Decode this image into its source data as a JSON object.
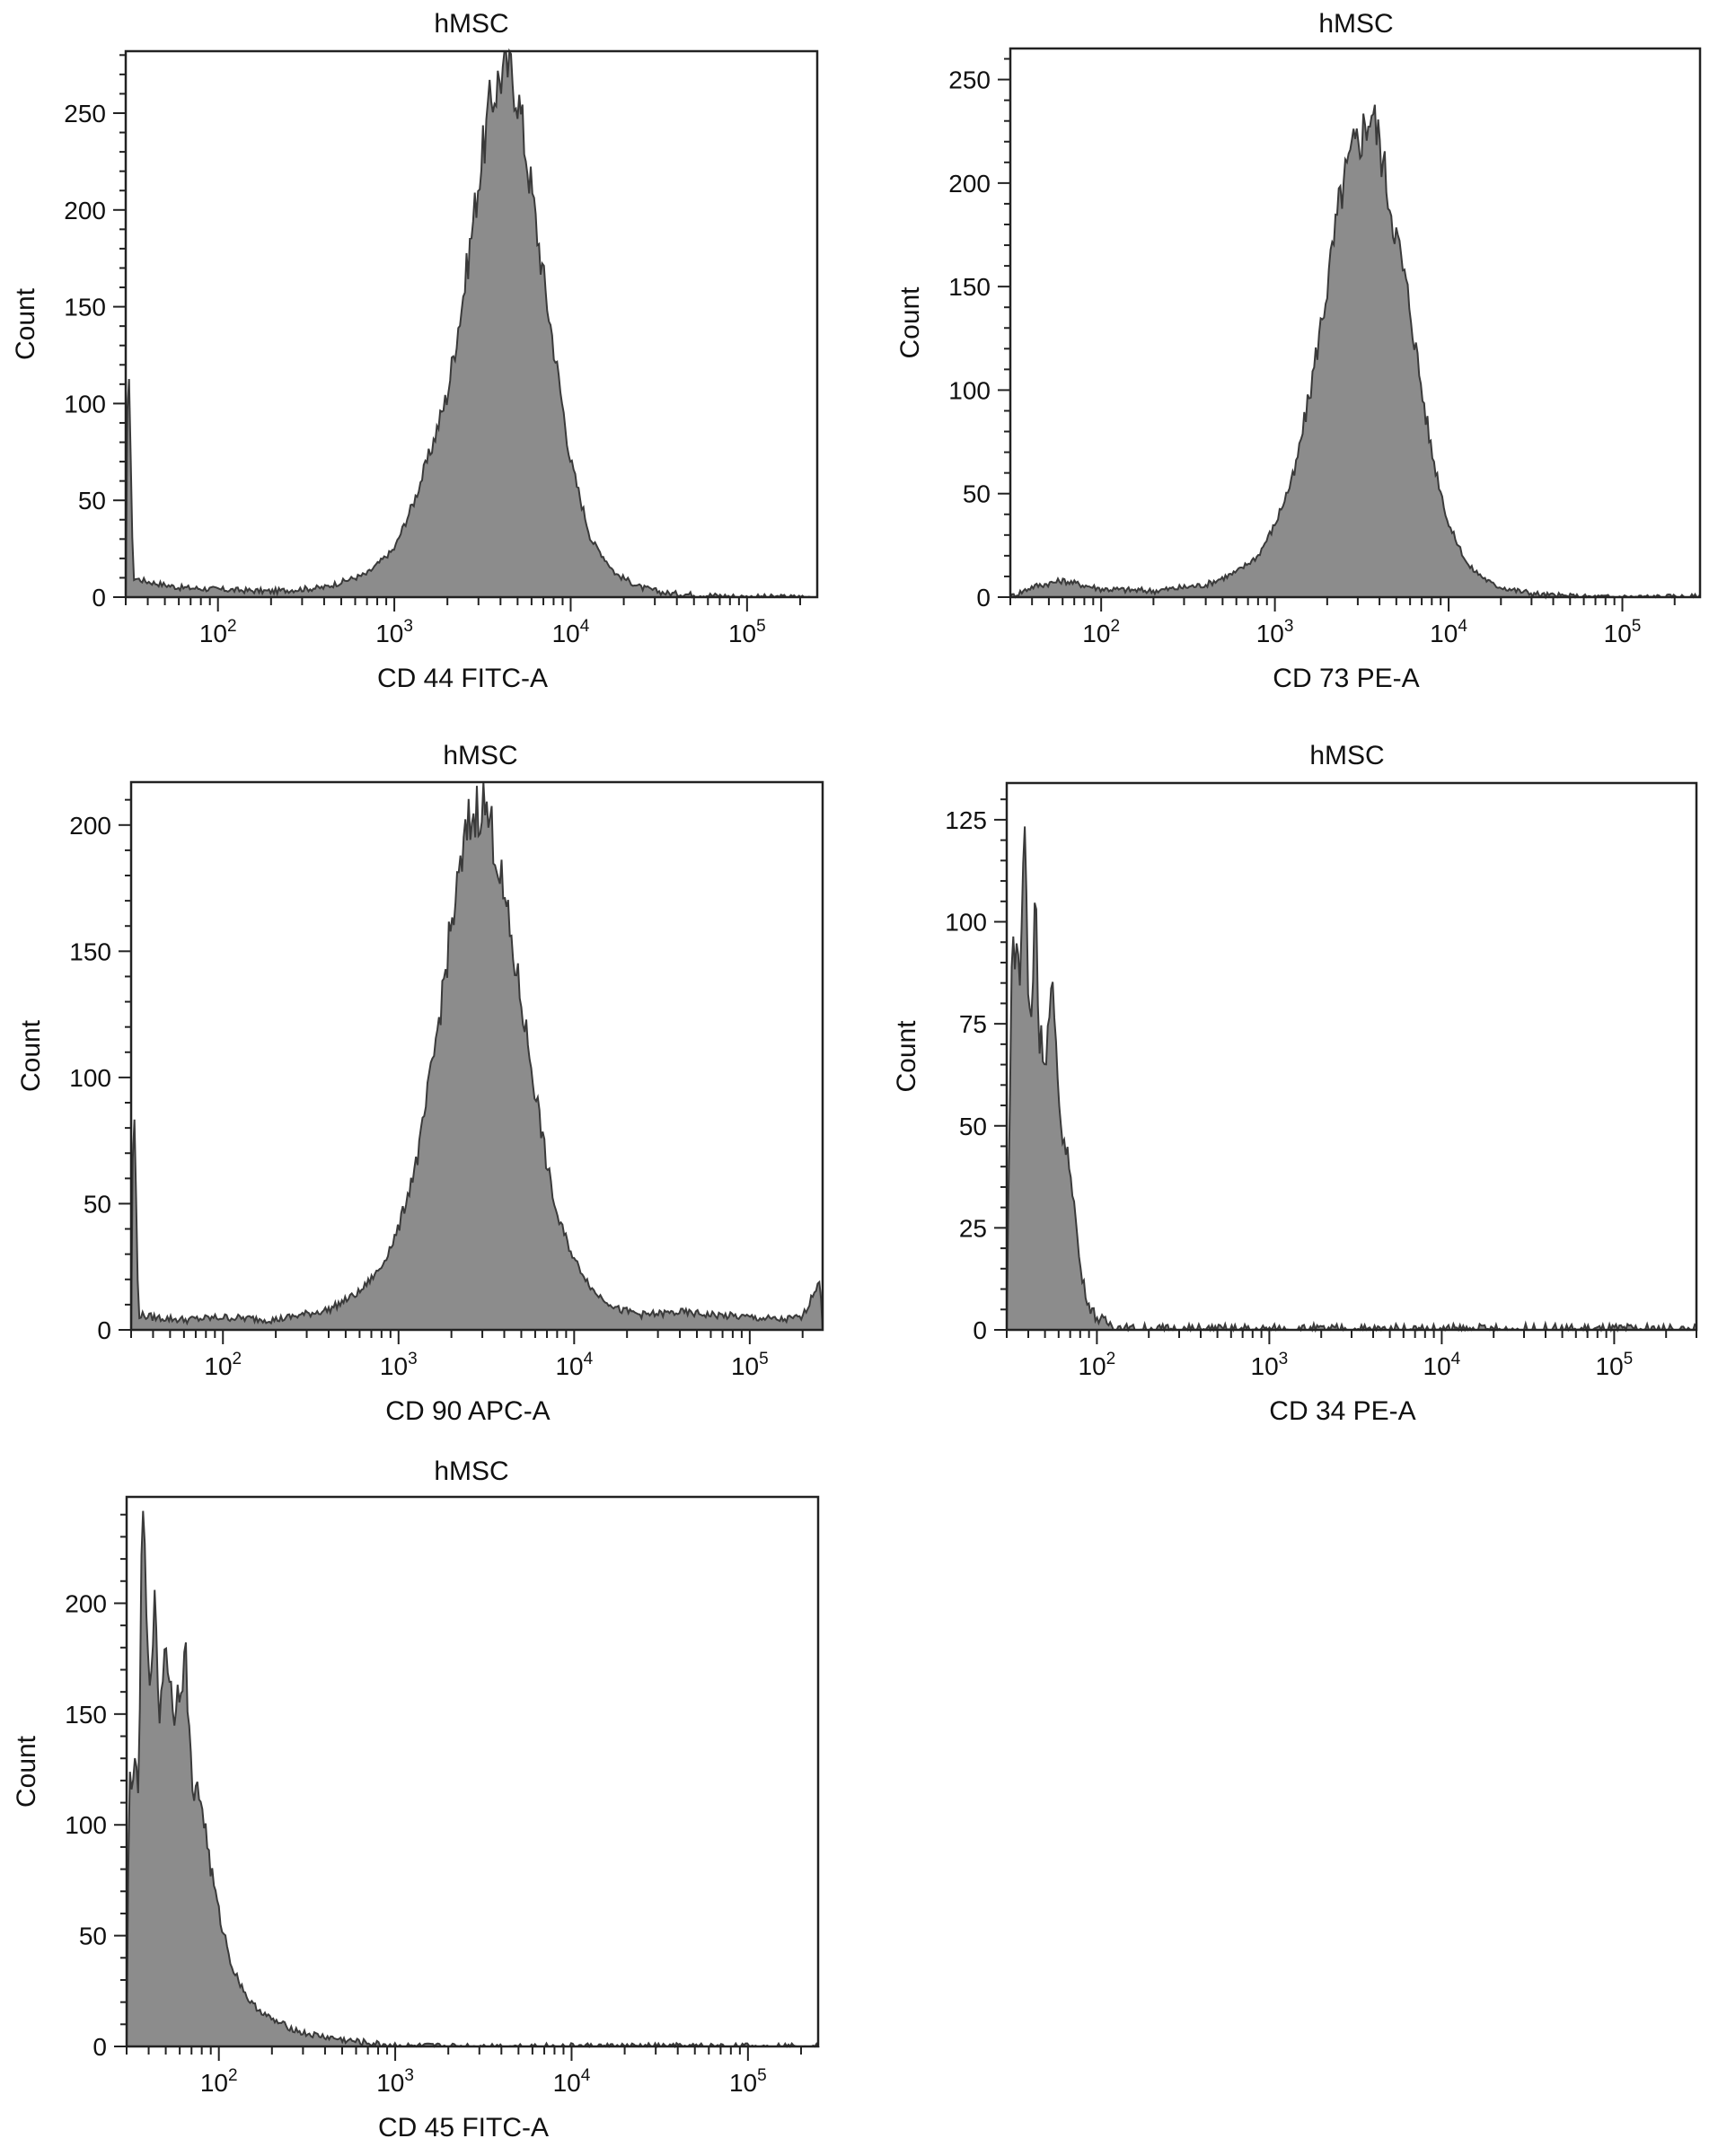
{
  "colors": {
    "fill": "#8c8c8c",
    "outline": "#3a3a3a",
    "frame": "#222222"
  },
  "chart_data": [
    {
      "type": "area",
      "title": "hMSC",
      "xlabel": "CD 44 FITC-A",
      "ylabel": "Count",
      "xscale": "log",
      "xlim": [
        30,
        250000
      ],
      "ylim": [
        0,
        282
      ],
      "yticks": [
        0,
        50,
        100,
        150,
        200,
        250
      ],
      "xticks": [
        100,
        1000,
        10000,
        100000
      ],
      "xtick_labels": [
        {
          "base": "10",
          "exp": "2"
        },
        {
          "base": "10",
          "exp": "3"
        },
        {
          "base": "10",
          "exp": "4"
        },
        {
          "base": "10",
          "exp": "5"
        }
      ],
      "series": [
        {
          "x": [
            30,
            31,
            33,
            40,
            60,
            100,
            200,
            400,
            700,
            1000,
            1300,
            1600,
            2000,
            2500,
            3000,
            3500,
            4000,
            4500,
            5000,
            6000,
            7000,
            8000,
            10000,
            13000,
            18000,
            25000,
            35000,
            60000,
            100000,
            250000
          ],
          "y": [
            0,
            140,
            10,
            8,
            5,
            4,
            3,
            5,
            12,
            25,
            50,
            75,
            105,
            160,
            215,
            255,
            270,
            275,
            260,
            210,
            165,
            130,
            70,
            30,
            12,
            5,
            2,
            1,
            0,
            0
          ]
        }
      ]
    },
    {
      "type": "area",
      "title": "hMSC",
      "xlabel": "CD 73 PE-A",
      "ylabel": "Count",
      "xscale": "log",
      "xlim": [
        30,
        280000
      ],
      "ylim": [
        0,
        265
      ],
      "yticks": [
        0,
        50,
        100,
        150,
        200,
        250
      ],
      "xticks": [
        100,
        1000,
        10000,
        100000
      ],
      "xtick_labels": [
        {
          "base": "10",
          "exp": "2"
        },
        {
          "base": "10",
          "exp": "3"
        },
        {
          "base": "10",
          "exp": "4"
        },
        {
          "base": "10",
          "exp": "5"
        }
      ],
      "series": [
        {
          "x": [
            30,
            40,
            60,
            100,
            200,
            400,
            600,
            800,
            1000,
            1300,
            1600,
            2000,
            2400,
            2800,
            3200,
            3600,
            4000,
            4500,
            5000,
            6000,
            7000,
            8000,
            10000,
            13000,
            18000,
            25000,
            35000,
            60000,
            280000
          ],
          "y": [
            0,
            5,
            8,
            4,
            3,
            6,
            12,
            20,
            35,
            60,
            100,
            150,
            195,
            215,
            225,
            235,
            220,
            195,
            175,
            140,
            100,
            70,
            35,
            15,
            6,
            3,
            1,
            0,
            0
          ]
        }
      ]
    },
    {
      "type": "area",
      "title": "hMSC",
      "xlabel": "CD 90 APC-A",
      "ylabel": "Count",
      "xscale": "log",
      "xlim": [
        30,
        260000
      ],
      "ylim": [
        0,
        217
      ],
      "yticks": [
        0,
        50,
        100,
        150,
        200
      ],
      "xticks": [
        100,
        1000,
        10000,
        100000
      ],
      "xtick_labels": [
        {
          "base": "10",
          "exp": "2"
        },
        {
          "base": "10",
          "exp": "3"
        },
        {
          "base": "10",
          "exp": "4"
        },
        {
          "base": "10",
          "exp": "5"
        }
      ],
      "series": [
        {
          "x": [
            30,
            31,
            33,
            40,
            60,
            100,
            200,
            400,
            600,
            800,
            1000,
            1300,
            1600,
            2000,
            2500,
            3000,
            3500,
            4000,
            5000,
            6000,
            7000,
            8000,
            10000,
            13000,
            18000,
            25000,
            40000,
            60000,
            100000,
            150000,
            200000,
            250000,
            260000
          ],
          "y": [
            0,
            100,
            6,
            5,
            4,
            5,
            4,
            8,
            15,
            25,
            40,
            70,
            110,
            160,
            200,
            210,
            195,
            170,
            130,
            95,
            65,
            45,
            28,
            15,
            8,
            6,
            7,
            6,
            5,
            4,
            5,
            20,
            0
          ]
        }
      ]
    },
    {
      "type": "area",
      "title": "hMSC",
      "xlabel": "CD 34 PE-A",
      "ylabel": "Count",
      "xscale": "log",
      "xlim": [
        30,
        300000
      ],
      "ylim": [
        0,
        134
      ],
      "yticks": [
        0,
        25,
        50,
        75,
        100,
        125
      ],
      "xticks": [
        100,
        1000,
        10000,
        100000
      ],
      "xtick_labels": [
        {
          "base": "10",
          "exp": "2"
        },
        {
          "base": "10",
          "exp": "3"
        },
        {
          "base": "10",
          "exp": "4"
        },
        {
          "base": "10",
          "exp": "5"
        }
      ],
      "series": [
        {
          "x": [
            30,
            32,
            34,
            36,
            38,
            40,
            42,
            44,
            46,
            48,
            50,
            55,
            60,
            65,
            70,
            75,
            80,
            85,
            90,
            100,
            110,
            130,
            150,
            300000
          ],
          "y": [
            0,
            90,
            95,
            85,
            130,
            80,
            75,
            115,
            70,
            72,
            65,
            85,
            55,
            45,
            40,
            28,
            15,
            10,
            6,
            3,
            2,
            1,
            0,
            0
          ]
        }
      ]
    },
    {
      "type": "area",
      "title": "hMSC",
      "xlabel": "CD 45 FITC-A",
      "ylabel": "Count",
      "xscale": "log",
      "xlim": [
        30,
        250000
      ],
      "ylim": [
        0,
        248
      ],
      "yticks": [
        0,
        50,
        100,
        150,
        200
      ],
      "xticks": [
        100,
        1000,
        10000,
        100000
      ],
      "xtick_labels": [
        {
          "base": "10",
          "exp": "2"
        },
        {
          "base": "10",
          "exp": "3"
        },
        {
          "base": "10",
          "exp": "4"
        },
        {
          "base": "10",
          "exp": "5"
        }
      ],
      "series": [
        {
          "x": [
            30,
            31,
            33,
            35,
            37,
            40,
            43,
            46,
            50,
            55,
            60,
            65,
            70,
            80,
            90,
            100,
            120,
            150,
            200,
            300,
            500,
            800,
            1200,
            2000,
            250000
          ],
          "y": [
            0,
            120,
            125,
            115,
            248,
            160,
            200,
            150,
            185,
            150,
            165,
            175,
            120,
            110,
            80,
            60,
            35,
            20,
            12,
            6,
            3,
            1,
            0,
            0,
            0
          ]
        }
      ]
    }
  ]
}
